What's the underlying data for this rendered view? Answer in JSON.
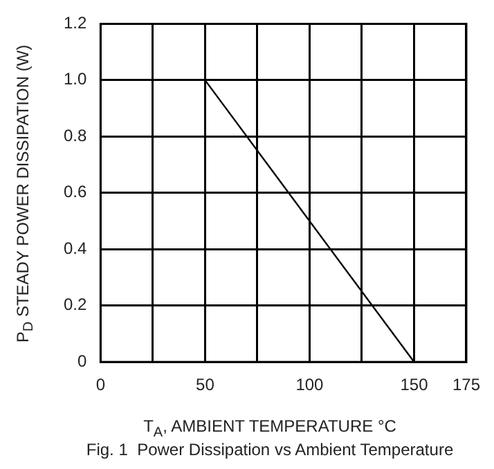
{
  "chart_data": {
    "type": "line",
    "xlabel": "T$_{A}$, AMBIENT TEMPERATURE °C",
    "ylabel": "P$_{D}$  STEADY POWER DISSIPATION (W)",
    "annotations": [
      "Fig. 1  Power Dissipation vs Ambient Temperature"
    ],
    "x": [
      50,
      150
    ],
    "series": [
      {
        "color": "#000000",
        "values": [
          1.0,
          0
        ]
      }
    ],
    "xlim": [
      0,
      175
    ],
    "xticks": [
      0,
      {
        "value": 25,
        "label": null
      },
      50,
      {
        "value": 75,
        "label": null
      },
      100,
      {
        "value": 125,
        "label": null
      },
      150,
      175
    ],
    "ylim": [
      0,
      1.2
    ],
    "yticks": [
      0,
      {
        "value": 0.2,
        "label": "0.2"
      },
      {
        "value": 0.4,
        "label": "0.4"
      },
      {
        "value": 0.6,
        "label": "0.6"
      },
      {
        "value": 0.8,
        "label": "0.8"
      },
      {
        "value": 1.0,
        "label": "1.0"
      },
      {
        "value": 1.2,
        "label": "1.2"
      }
    ],
    "grid": true
  }
}
